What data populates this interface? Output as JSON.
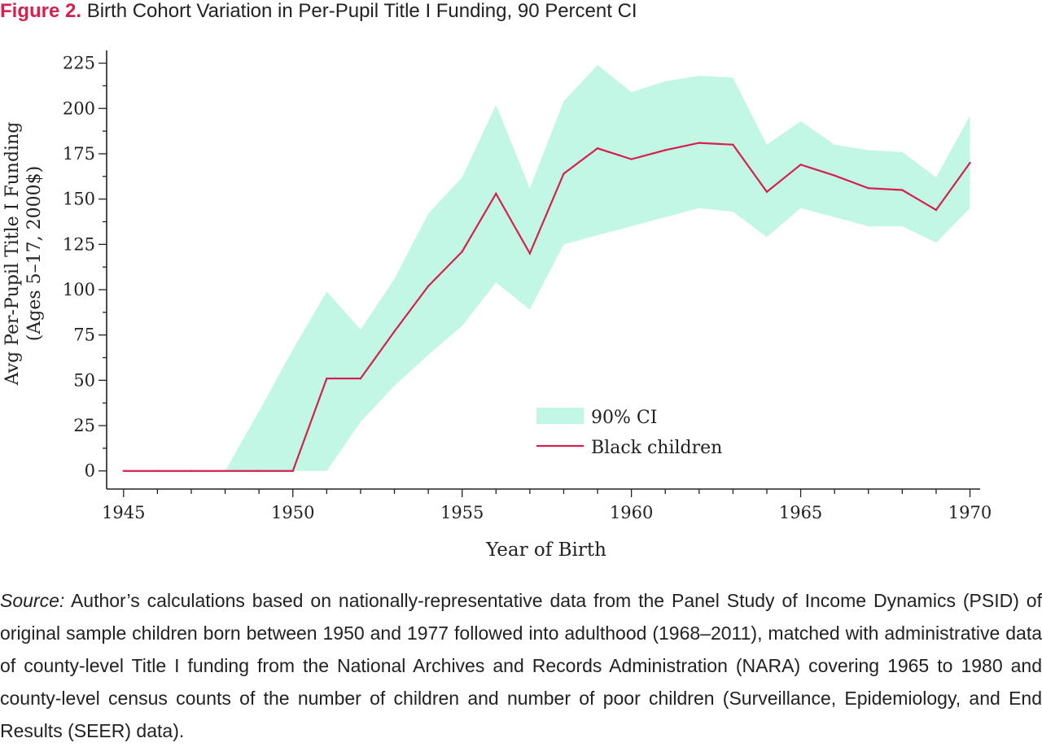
{
  "figure": {
    "label": "Figure 2.",
    "title": "Birth Cohort Variation in Per-Pupil Title I Funding, 90 Percent CI"
  },
  "source": {
    "label": "Source:",
    "text": "Author’s calculations based on nationally-representative data from the Panel Study of Income Dynamics (PSID) of original sample children born between 1950 and 1977 followed into adulthood (1968–2011), matched with administrative data of county-level Title I funding from the National Archives and Records Administration (NARA) covering 1965 to 1980 and county-level census counts of the number of children and number of poor children (Surveillance, Epidemiology, and End Results (SEER) data)."
  },
  "chart_data": {
    "type": "line",
    "title": "",
    "xlabel": "Year of Birth",
    "ylabel": [
      "Avg Per-Pupil Title I Funding",
      "(Ages 5–17, 2000$)"
    ],
    "xlim": [
      1944.5,
      1970.3
    ],
    "ylim": [
      -10,
      232
    ],
    "x_ticks": [
      1945,
      1950,
      1955,
      1960,
      1965,
      1970
    ],
    "y_ticks": [
      0,
      25,
      50,
      75,
      100,
      125,
      150,
      175,
      200,
      225
    ],
    "grid": false,
    "legend_position": "center-right",
    "colors": {
      "band": "#c2f7e6",
      "line": "#d6204f",
      "axis": "#222222"
    },
    "x": [
      1945,
      1946,
      1947,
      1948,
      1949,
      1950,
      1951,
      1952,
      1953,
      1954,
      1955,
      1956,
      1957,
      1958,
      1959,
      1960,
      1961,
      1962,
      1963,
      1964,
      1965,
      1966,
      1967,
      1968,
      1969,
      1970
    ],
    "series": [
      {
        "name": "Black children",
        "values": [
          0,
          0,
          0,
          0,
          0,
          0,
          51,
          51,
          77,
          102,
          121,
          153,
          120,
          164,
          178,
          172,
          177,
          181,
          180,
          154,
          169,
          163,
          156,
          155,
          144,
          170
        ]
      }
    ],
    "band": {
      "name": "90% CI",
      "lower": [
        0,
        0,
        0,
        0,
        0,
        0,
        0,
        27,
        47,
        64,
        80,
        104,
        89,
        125,
        130,
        135,
        140,
        145,
        143,
        129,
        145,
        140,
        135,
        135,
        126,
        145
      ],
      "upper": [
        0,
        0,
        0,
        0,
        33,
        67,
        99,
        78,
        106,
        142,
        162,
        202,
        156,
        204,
        224,
        209,
        215,
        218,
        217,
        180,
        193,
        180,
        177,
        176,
        162,
        196
      ]
    }
  }
}
